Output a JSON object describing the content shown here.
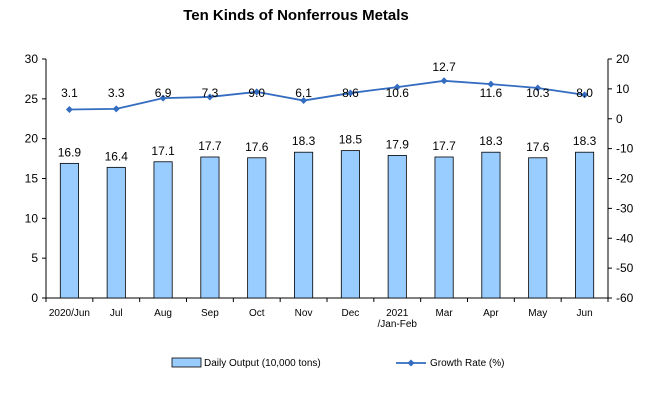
{
  "chart_data": {
    "type": "bar",
    "title": "Ten Kinds of Nonferrous Metals",
    "categories": [
      "2020/Jun",
      "Jul",
      "Aug",
      "Sep",
      "Oct",
      "Nov",
      "Dec",
      "2021\n/Jan-Feb",
      "Mar",
      "Apr",
      "May",
      "Jun"
    ],
    "series": [
      {
        "name": "Daily Output (10,000 tons)",
        "type": "bar",
        "axis": "left",
        "values": [
          16.9,
          16.4,
          17.1,
          17.7,
          17.6,
          18.3,
          18.5,
          17.9,
          17.7,
          18.3,
          17.6,
          18.3
        ],
        "color": "#99ccff"
      },
      {
        "name": "Growth Rate (%)",
        "type": "line",
        "axis": "right",
        "values": [
          3.1,
          3.3,
          6.9,
          7.3,
          9.0,
          6.1,
          8.6,
          10.6,
          12.7,
          11.6,
          10.3,
          8.0
        ],
        "color": "#336cc0"
      }
    ],
    "ylim_left": [
      0,
      30
    ],
    "yticks_left": [
      "0",
      "5",
      "10",
      "15",
      "20",
      "25",
      "30"
    ],
    "ylim_right": [
      -60,
      20
    ],
    "yticks_right": [
      "-60",
      "-50",
      "-40",
      "-30",
      "-20",
      "-10",
      "0",
      "10",
      "20"
    ],
    "data_labels": [
      "16.9",
      "16.4",
      "17.1",
      "17.7",
      "17.6",
      "18.3",
      "18.5",
      "17.9",
      "17.7",
      "18.3",
      "17.6",
      "18.3"
    ],
    "line_labels": [
      "3.1",
      "3.3",
      "6.9",
      "7.3",
      "9.0",
      "6.1",
      "8.6",
      "10.6",
      "12.7",
      "11.6",
      "10.3",
      "8.0"
    ],
    "grid": false,
    "legend_position": "bottom"
  }
}
